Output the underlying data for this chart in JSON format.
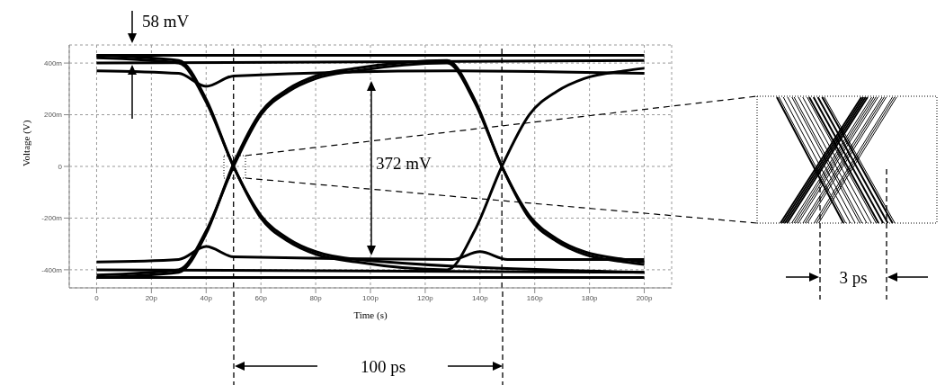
{
  "chart_data": {
    "type": "line",
    "xlabel": "Time (s)",
    "ylabel": "Voltage (V)",
    "xlim": [
      -10,
      210
    ],
    "ylim": [
      -470,
      470
    ],
    "xticks": [
      0,
      {
        "value": 20,
        "label": "20p"
      },
      {
        "value": 40,
        "label": "40p"
      },
      {
        "value": 60,
        "label": "60p"
      },
      {
        "value": 80,
        "label": "80p"
      },
      {
        "value": 100,
        "label": "100p"
      },
      {
        "value": 120,
        "label": "120p"
      },
      {
        "value": 140,
        "label": "140p"
      },
      {
        "value": 160,
        "label": "160p"
      },
      {
        "value": 180,
        "label": "180p"
      },
      {
        "value": 200,
        "label": "200p"
      }
    ],
    "yticks": [
      {
        "value": -400,
        "label": "-400m"
      },
      {
        "value": -200,
        "label": "-200m"
      },
      0,
      {
        "value": 200,
        "label": "200m"
      },
      {
        "value": 400,
        "label": "400m"
      }
    ],
    "grid": true,
    "line_style": "solid",
    "ref_lines": [
      {
        "axis": "x",
        "value": 50,
        "color": "#000000",
        "line_style": "dashed"
      },
      {
        "axis": "x",
        "value": 148,
        "color": "#000000",
        "line_style": "dashed"
      }
    ],
    "series": [
      {
        "color": "#000000",
        "x": [
          0,
          30,
          40,
          50,
          60,
          70,
          80,
          95,
          128,
          138,
          148,
          158,
          168,
          178,
          193,
          200
        ],
        "values": [
          420,
          400,
          250,
          0,
          -200,
          -290,
          -340,
          -370,
          -400,
          -250,
          0,
          200,
          290,
          340,
          370,
          380
        ]
      },
      {
        "color": "#000000",
        "x": [
          0,
          30,
          40,
          50,
          60,
          70,
          80,
          95,
          128,
          138,
          148,
          158,
          168,
          178,
          193,
          200
        ],
        "values": [
          -420,
          -400,
          -250,
          0,
          200,
          290,
          340,
          370,
          400,
          250,
          0,
          -200,
          -290,
          -340,
          -370,
          -380
        ]
      },
      {
        "color": "#000000",
        "x": [
          0,
          30,
          40,
          50,
          60,
          70,
          80,
          95,
          200
        ],
        "values": [
          430,
          410,
          260,
          0,
          -190,
          -280,
          -330,
          -360,
          -410
        ]
      },
      {
        "color": "#000000",
        "x": [
          0,
          30,
          40,
          50,
          60,
          70,
          80,
          95,
          128,
          138,
          148,
          158,
          168,
          178,
          193,
          200
        ],
        "values": [
          -430,
          -410,
          -260,
          10,
          210,
          300,
          350,
          380,
          410,
          260,
          0,
          -190,
          -280,
          -330,
          -360,
          -370
        ]
      },
      {
        "color": "#000000",
        "x": [
          0,
          30,
          40,
          50,
          130,
          200
        ],
        "values": [
          370,
          360,
          310,
          350,
          370,
          360
        ]
      },
      {
        "color": "#000000",
        "x": [
          0,
          30,
          40,
          50,
          130,
          140,
          150,
          200
        ],
        "values": [
          -370,
          -360,
          -310,
          -350,
          -360,
          -330,
          -360,
          -360
        ]
      },
      {
        "color": "#000000",
        "x": [
          0,
          200
        ],
        "values": [
          430,
          430
        ]
      },
      {
        "color": "#000000",
        "x": [
          0,
          200
        ],
        "values": [
          -430,
          -430
        ]
      },
      {
        "color": "#000000",
        "x": [
          0,
          200
        ],
        "values": [
          400,
          410
        ]
      },
      {
        "color": "#000000",
        "x": [
          0,
          200
        ],
        "values": [
          -400,
          -410
        ]
      }
    ],
    "annotations": [
      "58 mV",
      "372 mV",
      "100 ps",
      "3 ps"
    ]
  }
}
